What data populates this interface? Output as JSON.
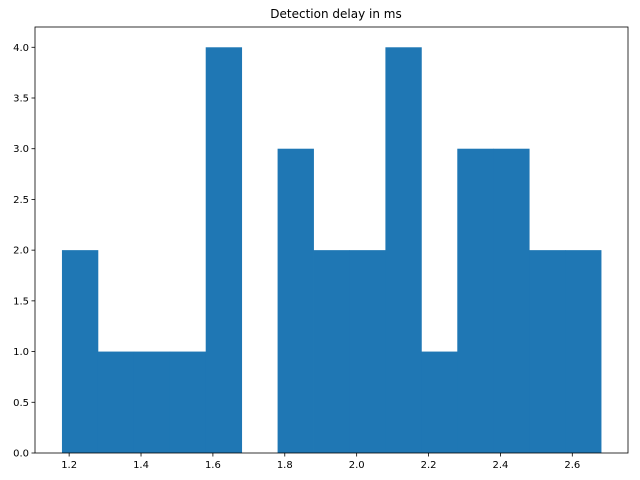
{
  "chart_data": {
    "type": "bar",
    "title": "Detection delay in ms",
    "xlabel": "",
    "ylabel": "",
    "bins": [
      {
        "x0": 1.18,
        "x1": 1.28,
        "count": 2
      },
      {
        "x0": 1.28,
        "x1": 1.38,
        "count": 1
      },
      {
        "x0": 1.38,
        "x1": 1.48,
        "count": 1
      },
      {
        "x0": 1.48,
        "x1": 1.58,
        "count": 1
      },
      {
        "x0": 1.58,
        "x1": 1.68,
        "count": 4
      },
      {
        "x0": 1.68,
        "x1": 1.78,
        "count": 0
      },
      {
        "x0": 1.78,
        "x1": 1.88,
        "count": 3
      },
      {
        "x0": 1.88,
        "x1": 1.98,
        "count": 2
      },
      {
        "x0": 1.98,
        "x1": 2.08,
        "count": 2
      },
      {
        "x0": 2.08,
        "x1": 2.18,
        "count": 4
      },
      {
        "x0": 2.18,
        "x1": 2.28,
        "count": 1
      },
      {
        "x0": 2.28,
        "x1": 2.38,
        "count": 3
      },
      {
        "x0": 2.38,
        "x1": 2.48,
        "count": 3
      },
      {
        "x0": 2.48,
        "x1": 2.58,
        "count": 2
      },
      {
        "x0": 2.58,
        "x1": 2.68,
        "count": 2
      }
    ],
    "xlim": [
      1.105,
      2.755
    ],
    "ylim": [
      0,
      4.2
    ],
    "xticks": [
      1.2,
      1.4,
      1.6,
      1.8,
      2.0,
      2.2,
      2.4,
      2.6
    ],
    "xtick_labels": [
      "1.2",
      "1.4",
      "1.6",
      "1.8",
      "2.0",
      "2.2",
      "2.4",
      "2.6"
    ],
    "yticks": [
      0,
      0.5,
      1,
      1.5,
      2,
      2.5,
      3,
      3.5,
      4
    ],
    "ytick_labels": [
      "0.0",
      "0.5",
      "1.0",
      "1.5",
      "2.0",
      "2.5",
      "3.0",
      "3.5",
      "4.0"
    ],
    "grid": false,
    "bar_color": "#1f77b4"
  }
}
